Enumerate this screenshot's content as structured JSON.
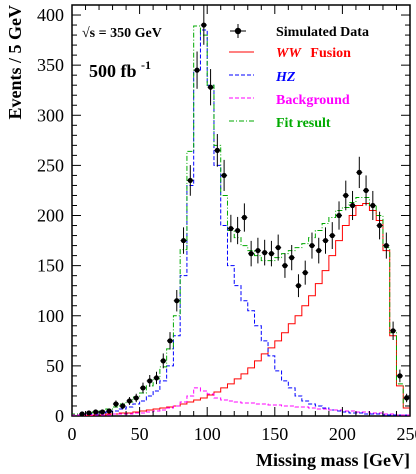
{
  "chart_data": {
    "type": "line",
    "xlabel": "Missing mass [GeV]",
    "ylabel": "Events / 5 GeV",
    "xlim": [
      0,
      250
    ],
    "ylim": [
      0,
      410
    ],
    "x_ticks": [
      "0",
      "50",
      "100",
      "150",
      "200",
      "250"
    ],
    "y_ticks": [
      "0",
      "50",
      "100",
      "150",
      "200",
      "250",
      "300",
      "350",
      "400"
    ],
    "annotations": {
      "energy": "√s = 350 GeV",
      "luminosity": "500 fb",
      "luminosity_exp": "-1"
    },
    "legend_position": "top-right",
    "colors": {
      "data": "#000000",
      "ww": "#ff0000",
      "hz": "#0000ff",
      "background": "#ff00ff",
      "fit": "#00aa00"
    },
    "series": [
      {
        "name": "Simulated Data",
        "style": "points",
        "x": [
          7.5,
          12.5,
          17.5,
          22.5,
          27.5,
          32.5,
          37.5,
          42.5,
          47.5,
          52.5,
          57.5,
          62.5,
          67.5,
          72.5,
          77.5,
          82.5,
          87.5,
          92.5,
          97.5,
          102.5,
          107.5,
          112.5,
          117.5,
          122.5,
          127.5,
          132.5,
          137.5,
          142.5,
          147.5,
          152.5,
          157.5,
          162.5,
          167.5,
          172.5,
          177.5,
          182.5,
          187.5,
          192.5,
          197.5,
          202.5,
          207.5,
          212.5,
          217.5,
          222.5,
          227.5,
          232.5,
          237.5,
          242.5,
          247.5
        ],
        "y": [
          2,
          3,
          4,
          4,
          5,
          12,
          10,
          15,
          18,
          28,
          35,
          38,
          55,
          75,
          115,
          175,
          235,
          345,
          390,
          328,
          265,
          240,
          187,
          185,
          198,
          162,
          165,
          163,
          162,
          168,
          150,
          158,
          130,
          143,
          170,
          165,
          175,
          180,
          200,
          220,
          210,
          243,
          225,
          210,
          190,
          170,
          85,
          40,
          18
        ],
        "err": [
          1.4,
          1.7,
          2,
          2,
          2.2,
          3.5,
          3.2,
          3.9,
          4.2,
          5.3,
          5.9,
          6.2,
          7.4,
          8.7,
          10.7,
          13.2,
          15.3,
          18.6,
          19.7,
          18.1,
          16.3,
          15.5,
          13.7,
          13.6,
          14.1,
          12.7,
          12.8,
          12.8,
          12.7,
          13,
          12.2,
          12.6,
          11.4,
          12,
          13,
          12.8,
          13.2,
          13.4,
          14.1,
          14.8,
          14.5,
          15.6,
          15,
          14.5,
          13.8,
          13,
          9.2,
          6.3,
          4.2
        ]
      },
      {
        "name": "WW",
        "name_suffix": "Fusion",
        "style": "step-solid",
        "x": [
          0,
          5,
          10,
          15,
          20,
          25,
          30,
          35,
          40,
          45,
          50,
          55,
          60,
          65,
          70,
          75,
          80,
          85,
          90,
          95,
          100,
          105,
          110,
          115,
          120,
          125,
          130,
          135,
          140,
          145,
          150,
          155,
          160,
          165,
          170,
          175,
          180,
          185,
          190,
          195,
          200,
          205,
          210,
          215,
          220,
          225,
          230,
          235,
          240,
          245,
          250
        ],
        "y": [
          0,
          0.5,
          0.5,
          1,
          1,
          2,
          2,
          3,
          3,
          4,
          5,
          6,
          7,
          8,
          9,
          10,
          12,
          14,
          16,
          18,
          21,
          24,
          28,
          32,
          37,
          42,
          48,
          55,
          62,
          68,
          75,
          83,
          92,
          100,
          110,
          120,
          132,
          145,
          160,
          175,
          190,
          200,
          210,
          212,
          205,
          195,
          165,
          80,
          30,
          8,
          2
        ]
      },
      {
        "name": "HZ",
        "style": "step-dashed",
        "x": [
          0,
          5,
          10,
          15,
          20,
          25,
          30,
          35,
          40,
          45,
          50,
          55,
          60,
          65,
          70,
          75,
          80,
          85,
          90,
          95,
          100,
          105,
          110,
          115,
          120,
          125,
          130,
          135,
          140,
          145,
          150,
          155,
          160,
          165,
          170,
          175,
          180,
          185,
          190,
          195,
          200,
          205,
          210,
          215,
          220,
          225,
          230,
          235,
          240,
          245,
          250
        ],
        "y": [
          1,
          1,
          2,
          2,
          3,
          4,
          5,
          7,
          9,
          12,
          15,
          20,
          25,
          35,
          50,
          80,
          140,
          230,
          345,
          385,
          330,
          250,
          190,
          150,
          130,
          115,
          105,
          90,
          75,
          60,
          45,
          35,
          28,
          20,
          15,
          12,
          10,
          8,
          6,
          5,
          4,
          3,
          3,
          2,
          2,
          2,
          1,
          1,
          1,
          1,
          0
        ]
      },
      {
        "name": "Background",
        "style": "step-dashed",
        "x": [
          0,
          5,
          10,
          15,
          20,
          25,
          30,
          35,
          40,
          45,
          50,
          55,
          60,
          65,
          70,
          75,
          80,
          85,
          90,
          95,
          100,
          105,
          110,
          115,
          120,
          125,
          130,
          135,
          140,
          145,
          150,
          155,
          160,
          165,
          170,
          175,
          180,
          185,
          190,
          195,
          200,
          205,
          210,
          215,
          220,
          225,
          230,
          235,
          240,
          245,
          250
        ],
        "y": [
          1,
          1,
          1,
          1,
          1,
          1,
          2,
          2,
          2,
          3,
          3,
          4,
          5,
          6,
          8,
          10,
          14,
          20,
          28,
          25,
          22,
          18,
          16,
          15,
          14,
          13,
          13,
          12,
          12,
          11,
          11,
          10,
          10,
          9,
          9,
          8,
          7,
          7,
          6,
          6,
          5,
          5,
          4,
          4,
          3,
          3,
          2,
          2,
          1,
          1,
          0
        ]
      },
      {
        "name": "Fit result",
        "style": "step-dashdot",
        "x": [
          0,
          5,
          10,
          15,
          20,
          25,
          30,
          35,
          40,
          45,
          50,
          55,
          60,
          65,
          70,
          75,
          80,
          85,
          90,
          95,
          100,
          105,
          110,
          115,
          120,
          125,
          130,
          135,
          140,
          145,
          150,
          155,
          160,
          165,
          170,
          175,
          180,
          185,
          190,
          195,
          200,
          205,
          210,
          215,
          220,
          225,
          230,
          235,
          240,
          245,
          250
        ],
        "y": [
          2,
          2.5,
          3,
          4,
          5,
          7,
          9,
          12,
          14,
          19,
          23,
          30,
          37,
          49,
          67,
          100,
          166,
          264,
          389,
          380,
          330,
          270,
          220,
          185,
          178,
          170,
          165,
          160,
          155,
          155,
          158,
          162,
          165,
          168,
          172,
          178,
          185,
          192,
          198,
          205,
          208,
          213,
          218,
          218,
          210,
          200,
          168,
          83,
          32,
          10,
          2
        ]
      }
    ]
  }
}
